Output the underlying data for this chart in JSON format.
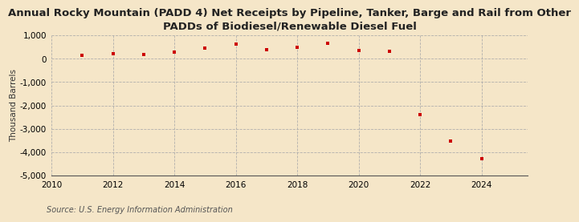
{
  "title": "Annual Rocky Mountain (PADD 4) Net Receipts by Pipeline, Tanker, Barge and Rail from Other\nPADDs of Biodiesel/Renewable Diesel Fuel",
  "ylabel": "Thousand Barrels",
  "source": "Source: U.S. Energy Information Administration",
  "background_color": "#f5e6c8",
  "plot_bg_color": "#f5e6c8",
  "marker_color": "#cc0000",
  "years": [
    2011,
    2012,
    2013,
    2014,
    2015,
    2016,
    2017,
    2018,
    2019,
    2020,
    2021,
    2022,
    2023,
    2024
  ],
  "values": [
    155,
    215,
    175,
    295,
    440,
    635,
    390,
    490,
    655,
    360,
    305,
    -2380,
    -3520,
    -4280
  ],
  "xlim": [
    2010,
    2025.5
  ],
  "ylim": [
    -5000,
    1000
  ],
  "yticks": [
    1000,
    0,
    -1000,
    -2000,
    -3000,
    -4000,
    -5000
  ],
  "xticks": [
    2010,
    2012,
    2014,
    2016,
    2018,
    2020,
    2022,
    2024
  ],
  "title_fontsize": 9.5,
  "label_fontsize": 7.5,
  "tick_fontsize": 7.5,
  "source_fontsize": 7
}
